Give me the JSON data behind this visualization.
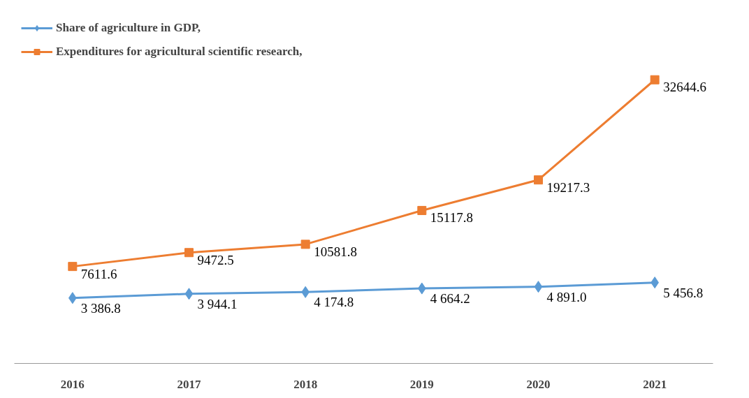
{
  "chart_data": {
    "type": "line",
    "categories": [
      "2016",
      "2017",
      "2018",
      "2019",
      "2020",
      "2021"
    ],
    "series": [
      {
        "name": "Share of agriculture in GDP,",
        "color": "#5b9bd5",
        "marker": "diamond",
        "values": [
          3386.8,
          3944.1,
          4174.8,
          4664.2,
          4891.0,
          5456.8
        ],
        "value_labels": [
          "3 386.8",
          "3 944.1",
          "4 174.8",
          "4 664.2",
          "4 891.0",
          "5 456.8"
        ]
      },
      {
        "name": "Expenditures for agricultural scientific research,",
        "color": "#ed7d31",
        "marker": "square",
        "values": [
          7611.6,
          9472.5,
          10581.8,
          15117.8,
          19217.3,
          32644.6
        ],
        "value_labels": [
          "7611.6",
          "9472.5",
          "10581.8",
          "15117.8",
          "19217.3",
          "32644.6"
        ]
      }
    ],
    "grid": false,
    "legend": "top left",
    "line_style": "solid"
  }
}
